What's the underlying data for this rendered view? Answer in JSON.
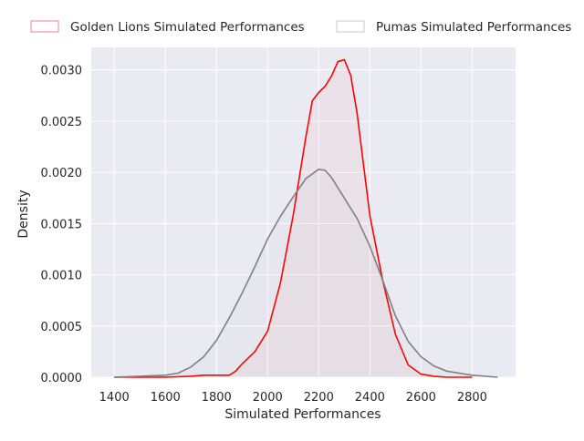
{
  "chart_data": {
    "type": "area",
    "xlabel": "Simulated Performances",
    "ylabel": "Density",
    "xlim": [
      1310,
      2970
    ],
    "ylim": [
      0,
      0.00322
    ],
    "xticks": [
      1400,
      1600,
      1800,
      2000,
      2200,
      2400,
      2600,
      2800
    ],
    "yticks": [
      0,
      0.0005,
      0.001,
      0.0015,
      0.002,
      0.0025,
      0.003
    ],
    "ytick_labels": [
      "0.0000",
      "0.0005",
      "0.0010",
      "0.0015",
      "0.0020",
      "0.0025",
      "0.0030"
    ],
    "grid": true,
    "legend_position": "top, outside plot, horizontal",
    "colors": {
      "background": "#eaeaf2",
      "grid": "#ffffff",
      "text": "#262626"
    },
    "series": [
      {
        "name": "Golden Lions Simulated Performances",
        "color": "#ff0000",
        "fill": true,
        "x": [
          1400,
          1500,
          1600,
          1700,
          1750,
          1800,
          1850,
          1875,
          1900,
          1950,
          2000,
          2050,
          2100,
          2150,
          2175,
          2200,
          2225,
          2250,
          2275,
          2300,
          2325,
          2350,
          2375,
          2400,
          2450,
          2500,
          2550,
          2600,
          2650,
          2700,
          2800
        ],
        "y": [
          0,
          0,
          0,
          1e-05,
          2e-05,
          2e-05,
          2e-05,
          6e-05,
          0.00013,
          0.00025,
          0.00045,
          0.00092,
          0.00158,
          0.00235,
          0.0027,
          0.00278,
          0.00284,
          0.00294,
          0.00308,
          0.0031,
          0.00295,
          0.00258,
          0.00208,
          0.00158,
          0.00095,
          0.00042,
          0.00012,
          3e-05,
          1e-05,
          0,
          0
        ]
      },
      {
        "name": "Pumas Simulated Performances",
        "color": "#808080",
        "fill": true,
        "x": [
          1400,
          1500,
          1600,
          1650,
          1700,
          1750,
          1800,
          1850,
          1900,
          1950,
          2000,
          2050,
          2100,
          2150,
          2200,
          2225,
          2250,
          2300,
          2350,
          2400,
          2450,
          2500,
          2550,
          2600,
          2650,
          2700,
          2800,
          2900
        ],
        "y": [
          0,
          1e-05,
          2e-05,
          4e-05,
          0.0001,
          0.0002,
          0.00036,
          0.00058,
          0.00082,
          0.00108,
          0.00135,
          0.00157,
          0.00176,
          0.00194,
          0.00203,
          0.00202,
          0.00195,
          0.00175,
          0.00155,
          0.00128,
          0.00095,
          0.0006,
          0.00035,
          0.0002,
          0.00011,
          6e-05,
          2e-05,
          0
        ]
      }
    ]
  }
}
